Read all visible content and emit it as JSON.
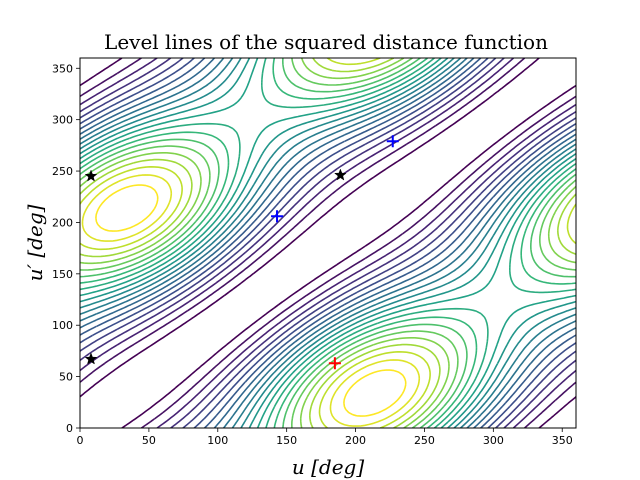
{
  "chart_data": {
    "type": "contour",
    "title": "Level lines of the squared distance function",
    "xlabel": "u [deg]",
    "ylabel": "u′ [deg]",
    "xlim": [
      0,
      360
    ],
    "ylim": [
      0,
      360
    ],
    "xticks": [
      0,
      50,
      100,
      150,
      200,
      250,
      300,
      350
    ],
    "yticks": [
      0,
      50,
      100,
      150,
      200,
      250,
      300,
      350
    ],
    "grid": false,
    "colormap": "viridis",
    "contour_levels": 22,
    "markers": [
      {
        "kind": "star",
        "color": "#000000",
        "x": 8,
        "y": 245
      },
      {
        "kind": "star",
        "color": "#000000",
        "x": 189,
        "y": 246
      },
      {
        "kind": "star",
        "color": "#000000",
        "x": 8,
        "y": 67
      },
      {
        "kind": "plus",
        "color": "#0000ff",
        "x": 143,
        "y": 206
      },
      {
        "kind": "plus",
        "color": "#0000ff",
        "x": 227,
        "y": 279
      },
      {
        "kind": "plus",
        "color": "#ff0000",
        "x": 185,
        "y": 63
      }
    ]
  }
}
